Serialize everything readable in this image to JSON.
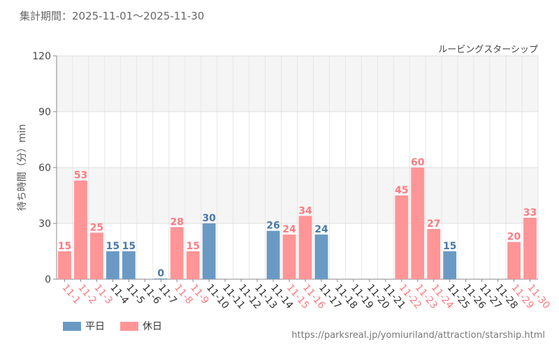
{
  "header": {
    "period": "集計期間：2025-11-01～2025-11-30"
  },
  "colors": {
    "weekday": "#6a9ac4",
    "holiday": "#ff9597",
    "weekday_text": "#4a78a8",
    "holiday_text": "#ff7a80"
  },
  "legend": {
    "weekday_label": "平日",
    "holiday_label": "休日"
  },
  "footer": {
    "source": "https://parksreal.jp/yomiuriland/attraction/starship.html"
  },
  "chart_data": {
    "type": "bar",
    "title": "ルービングスターシップ",
    "xlabel": "",
    "ylabel": "待ち時間（分）min",
    "ylim": [
      0,
      120
    ],
    "yticks": [
      0,
      30,
      60,
      90,
      120
    ],
    "categories": [
      "11-1",
      "11-2",
      "11-3",
      "11-4",
      "11-5",
      "11-6",
      "11-7",
      "11-8",
      "11-9",
      "11-10",
      "11-11",
      "11-12",
      "11-13",
      "11-14",
      "11-15",
      "11-16",
      "11-17",
      "11-18",
      "11-19",
      "11-20",
      "11-21",
      "11-22",
      "11-23",
      "11-24",
      "11-25",
      "11-26",
      "11-27",
      "11-28",
      "11-29",
      "11-30"
    ],
    "values": [
      15,
      53,
      25,
      15,
      15,
      null,
      0,
      28,
      15,
      30,
      null,
      null,
      null,
      26,
      24,
      34,
      24,
      null,
      null,
      null,
      null,
      45,
      60,
      27,
      15,
      null,
      null,
      null,
      20,
      33
    ],
    "day_type": [
      "holiday",
      "holiday",
      "holiday",
      "weekday",
      "weekday",
      "weekday",
      "weekday",
      "holiday",
      "holiday",
      "weekday",
      "weekday",
      "weekday",
      "weekday",
      "weekday",
      "holiday",
      "holiday",
      "weekday",
      "weekday",
      "weekday",
      "weekday",
      "weekday",
      "holiday",
      "holiday",
      "holiday",
      "weekday",
      "weekday",
      "weekday",
      "weekday",
      "holiday",
      "holiday"
    ],
    "series": [
      {
        "name": "平日",
        "key": "weekday"
      },
      {
        "name": "休日",
        "key": "holiday"
      }
    ],
    "grid": true,
    "legend_position": "bottom-left"
  }
}
